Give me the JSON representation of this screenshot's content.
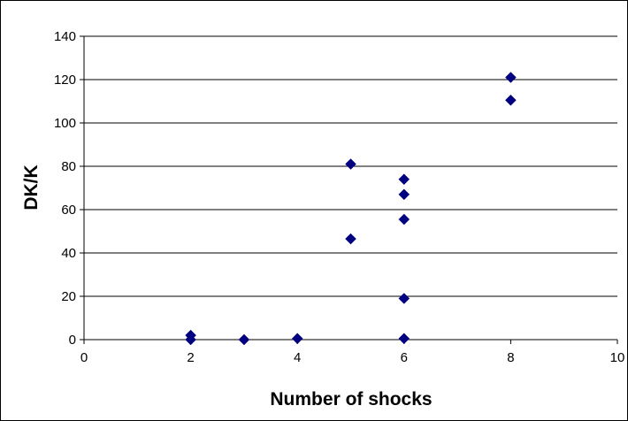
{
  "chart_data": {
    "type": "scatter",
    "xlabel": "Number of shocks",
    "ylabel": "DK/K",
    "xlim": [
      0,
      10
    ],
    "ylim": [
      0,
      140
    ],
    "xticks": [
      0,
      2,
      4,
      6,
      8,
      10
    ],
    "yticks": [
      0,
      20,
      40,
      60,
      80,
      100,
      120,
      140
    ],
    "grid": "horizontal",
    "legend": "none",
    "marker": "diamond",
    "marker_color": "#000080",
    "series": [
      {
        "points": [
          {
            "x": 2,
            "y": 2
          },
          {
            "x": 2,
            "y": 0
          },
          {
            "x": 3,
            "y": 0
          },
          {
            "x": 4,
            "y": 0.5
          },
          {
            "x": 5,
            "y": 81
          },
          {
            "x": 5,
            "y": 46.5
          },
          {
            "x": 6,
            "y": 74
          },
          {
            "x": 6,
            "y": 67
          },
          {
            "x": 6,
            "y": 55.5
          },
          {
            "x": 6,
            "y": 19
          },
          {
            "x": 6,
            "y": 0.5
          },
          {
            "x": 8,
            "y": 121
          },
          {
            "x": 8,
            "y": 110.5
          }
        ]
      }
    ]
  }
}
